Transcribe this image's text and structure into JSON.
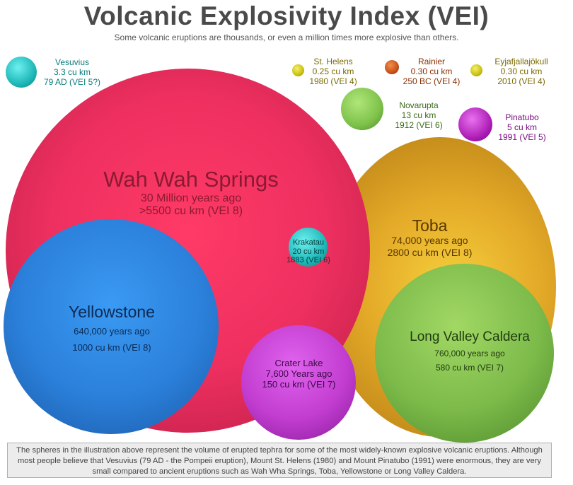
{
  "title": "Volcanic Explosivity Index (VEI)",
  "subtitle": "Some volcanic eruptions are thousands, or even a million times more explosive than others.",
  "volcanoes": {
    "wah_wah": {
      "name": "Wah Wah Springs",
      "line1": "30 Million years ago",
      "line2": ">5500 cu km (VEI 8)",
      "color": "#e8335c"
    },
    "toba": {
      "name": "Toba",
      "line1": "74,000 years ago",
      "line2": "2800 cu km (VEI 8)",
      "color": "#e0aa28"
    },
    "yellowstone": {
      "name": "Yellowstone",
      "line1": "640,000 years ago",
      "line2": "1000 cu km (VEI 8)",
      "color": "#2e86df"
    },
    "long_valley": {
      "name": "Long Valley Caldera",
      "line1": "760,000 years ago",
      "line2": "580 cu km (VEI 7)",
      "color": "#7cba4a"
    },
    "crater_lake": {
      "name": "Crater Lake",
      "line1": "7,600 Years ago",
      "line2": "150 cu km (VEI 7)",
      "color": "#c23dd0"
    },
    "krakatau": {
      "name": "Krakatau",
      "line1": "20 cu km",
      "line2": "1883 (VEI 6)",
      "color": "#1fb8b8"
    },
    "novarupta": {
      "name": "Novarupta",
      "line1": "13 cu km",
      "line2": "1912 (VEI 6)",
      "color": "#7ec24a"
    },
    "vesuvius": {
      "name": "Vesuvius",
      "line1": "3.3 cu km",
      "line2": "79 AD (VEI 5?)",
      "color": "#1fb8b8"
    },
    "pinatubo": {
      "name": "Pinatubo",
      "line1": "5 cu km",
      "line2": "1991 (VEI 5)",
      "color": "#b020b8"
    },
    "st_helens": {
      "name": "St. Helens",
      "line1": "0.25 cu km",
      "line2": "1980 (VEI 4)",
      "color": "#c8c010"
    },
    "rainier": {
      "name": "Rainier",
      "line1": "0.30 cu km",
      "line2": "250 BC (VEI 4)",
      "color": "#c8501a"
    },
    "eyjafjallajokull": {
      "name": "Eyjafjallajökull",
      "line1": "0.30 cu km",
      "line2": "2010 (VEI 4)",
      "color": "#c8c010"
    }
  },
  "footer": "The spheres in the illustration above represent the volume of erupted tephra for some of the most widely-known explosive volcanic eruptions. Although most people believe that Vesuvius (79 AD - the Pompeii eruption), Mount St. Helens (1980) and Mount Pinatubo (1991) were enormous, they are very small compared to ancient eruptions such as Wah Wha Springs, Toba, Yellowstone or Long Valley Caldera."
}
